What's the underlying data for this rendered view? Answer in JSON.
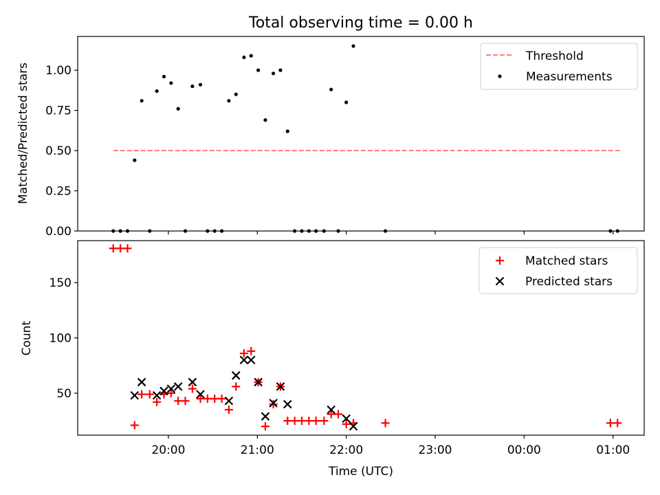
{
  "chart_data": [
    {
      "type": "scatter",
      "title": "Total observing time = 0.00 h",
      "xlabel": "",
      "ylabel": "Matched/Predicted stars",
      "ylim": [
        0,
        1.21
      ],
      "y_ticks": [
        0.0,
        0.25,
        0.5,
        0.75,
        1.0
      ],
      "y_tick_labels": [
        "0.00",
        "0.25",
        "0.50",
        "0.75",
        "1.00"
      ],
      "legend_position": "top-right",
      "threshold": {
        "name": "Threshold",
        "value": 0.5,
        "x_start": 19.38,
        "x_end": 25.1,
        "color": "#ff7f7f"
      },
      "series": [
        {
          "name": "Measurements",
          "color": "#000000",
          "x": [
            19.38,
            19.46,
            19.54,
            19.62,
            19.7,
            19.79,
            19.87,
            19.95,
            20.03,
            20.11,
            20.19,
            20.27,
            20.36,
            20.44,
            20.52,
            20.6,
            20.68,
            20.76,
            20.85,
            20.93,
            21.01,
            21.09,
            21.18,
            21.26,
            21.34,
            21.42,
            21.5,
            21.58,
            21.66,
            21.75,
            21.83,
            21.91,
            22.0,
            22.08,
            22.44,
            24.97,
            25.05
          ],
          "y": [
            0,
            0,
            0,
            0.44,
            0.81,
            0,
            0.87,
            0.96,
            0.92,
            0.76,
            0,
            0.9,
            0.91,
            0,
            0,
            0,
            0.81,
            0.85,
            1.08,
            1.09,
            1.0,
            0.69,
            0.98,
            1.0,
            0.62,
            0,
            0,
            0,
            0,
            0,
            0.88,
            0,
            0.8,
            1.15,
            0,
            0,
            0
          ]
        }
      ]
    },
    {
      "type": "scatter",
      "title": "",
      "xlabel": "Time (UTC)",
      "ylabel": "Count",
      "xlim": [
        18.98,
        25.35
      ],
      "ylim": [
        12,
        188
      ],
      "x_ticks": [
        20,
        21,
        22,
        23,
        24,
        25
      ],
      "x_tick_labels": [
        "20:00",
        "21:00",
        "22:00",
        "23:00",
        "00:00",
        "01:00"
      ],
      "y_ticks": [
        50,
        100,
        150
      ],
      "y_tick_labels": [
        "50",
        "100",
        "150"
      ],
      "legend_position": "top-right",
      "series": [
        {
          "name": "Matched stars",
          "marker": "+",
          "color": "#ff0000",
          "x": [
            19.38,
            19.46,
            19.54,
            19.62,
            19.7,
            19.79,
            19.87,
            19.95,
            20.03,
            20.11,
            20.19,
            20.27,
            20.36,
            20.44,
            20.52,
            20.6,
            20.68,
            20.76,
            20.85,
            20.93,
            21.01,
            21.09,
            21.18,
            21.26,
            21.34,
            21.42,
            21.5,
            21.58,
            21.66,
            21.75,
            21.83,
            21.91,
            22.0,
            22.08,
            22.44,
            24.97,
            25.05
          ],
          "y": [
            181,
            181,
            181,
            21,
            49,
            49,
            42,
            49,
            50,
            43,
            43,
            54,
            45,
            45,
            45,
            45,
            35,
            56,
            86,
            88,
            60,
            20,
            40,
            56,
            25,
            25,
            25,
            25,
            25,
            25,
            31,
            31,
            22,
            23,
            23,
            23,
            23
          ]
        },
        {
          "name": "Predicted stars",
          "marker": "x",
          "color": "#000000",
          "x": [
            19.62,
            19.7,
            19.87,
            19.95,
            20.03,
            20.11,
            20.27,
            20.36,
            20.68,
            20.76,
            20.85,
            20.93,
            21.01,
            21.09,
            21.18,
            21.26,
            21.34,
            21.83,
            22.0,
            22.08
          ],
          "y": [
            48,
            60,
            48,
            52,
            54,
            56,
            60,
            49,
            43,
            66,
            80,
            80,
            60,
            29,
            41,
            56,
            40,
            35,
            27,
            20
          ]
        }
      ]
    }
  ]
}
